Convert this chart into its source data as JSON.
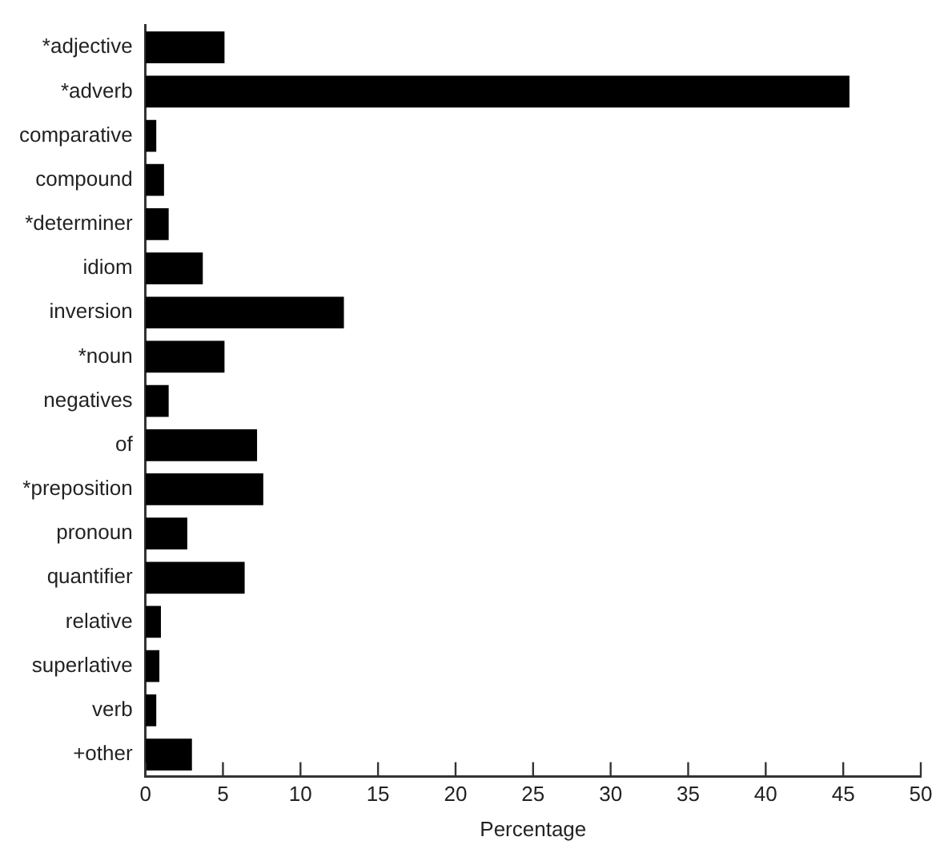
{
  "chart_data": {
    "type": "bar",
    "orientation": "horizontal",
    "xlabel": "Percentage",
    "categories": [
      "*adjective",
      "*adverb",
      "comparative",
      "compound",
      "*determiner",
      "idiom",
      "inversion",
      "*noun",
      "negatives",
      "of",
      "*preposition",
      "pronoun",
      "quantifier",
      "relative",
      "superlative",
      "verb",
      "+other"
    ],
    "values": [
      5.1,
      45.4,
      0.7,
      1.2,
      1.5,
      3.7,
      12.8,
      5.1,
      1.5,
      7.2,
      7.6,
      2.7,
      6.4,
      1.0,
      0.9,
      0.7,
      3.0
    ],
    "color": "#000000",
    "xlim": [
      0,
      50
    ],
    "xticks": [
      0,
      5,
      10,
      15,
      20,
      25,
      30,
      35,
      40,
      45,
      50
    ],
    "grid": false,
    "legend": false
  }
}
